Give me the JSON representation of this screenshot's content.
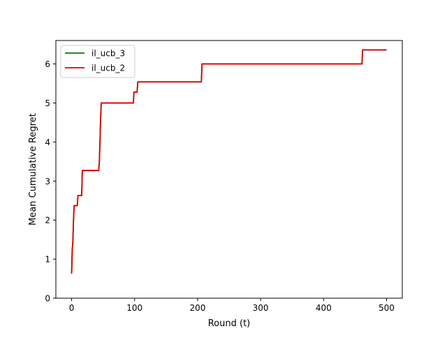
{
  "chart_data": {
    "type": "line",
    "title": "",
    "xlabel": "Round (t)",
    "ylabel": "Mean Cumulative Regret",
    "xlim": [
      -25,
      525
    ],
    "ylim": [
      0,
      6.6
    ],
    "xticks": [
      0,
      100,
      200,
      300,
      400,
      500
    ],
    "yticks": [
      0,
      1,
      2,
      3,
      4,
      5,
      6
    ],
    "grid": false,
    "legend_position": "top-left",
    "series": [
      {
        "name": "il_ucb_3",
        "color": "#008000",
        "points": [
          [
            0,
            0.63
          ],
          [
            1,
            1.25
          ],
          [
            2,
            1.45
          ],
          [
            3,
            2.0
          ],
          [
            4,
            2.37
          ],
          [
            9,
            2.37
          ],
          [
            10,
            2.63
          ],
          [
            16,
            2.63
          ],
          [
            17,
            3.27
          ],
          [
            43,
            3.27
          ],
          [
            44,
            3.5
          ],
          [
            45,
            4.0
          ],
          [
            46,
            4.6
          ],
          [
            47,
            5.0
          ],
          [
            98,
            5.0
          ],
          [
            99,
            5.28
          ],
          [
            104,
            5.28
          ],
          [
            105,
            5.54
          ],
          [
            206,
            5.54
          ],
          [
            207,
            6.0
          ],
          [
            461,
            6.0
          ],
          [
            462,
            6.36
          ],
          [
            500,
            6.36
          ]
        ]
      },
      {
        "name": "il_ucb_2",
        "color": "#e00000",
        "points": [
          [
            0,
            0.63
          ],
          [
            1,
            1.25
          ],
          [
            2,
            1.45
          ],
          [
            3,
            2.0
          ],
          [
            4,
            2.37
          ],
          [
            9,
            2.37
          ],
          [
            10,
            2.63
          ],
          [
            16,
            2.63
          ],
          [
            17,
            3.27
          ],
          [
            43,
            3.27
          ],
          [
            44,
            3.5
          ],
          [
            45,
            4.0
          ],
          [
            46,
            4.6
          ],
          [
            47,
            5.0
          ],
          [
            98,
            5.0
          ],
          [
            99,
            5.28
          ],
          [
            104,
            5.28
          ],
          [
            105,
            5.54
          ],
          [
            206,
            5.54
          ],
          [
            207,
            6.0
          ],
          [
            461,
            6.0
          ],
          [
            462,
            6.36
          ],
          [
            500,
            6.36
          ]
        ]
      }
    ]
  }
}
